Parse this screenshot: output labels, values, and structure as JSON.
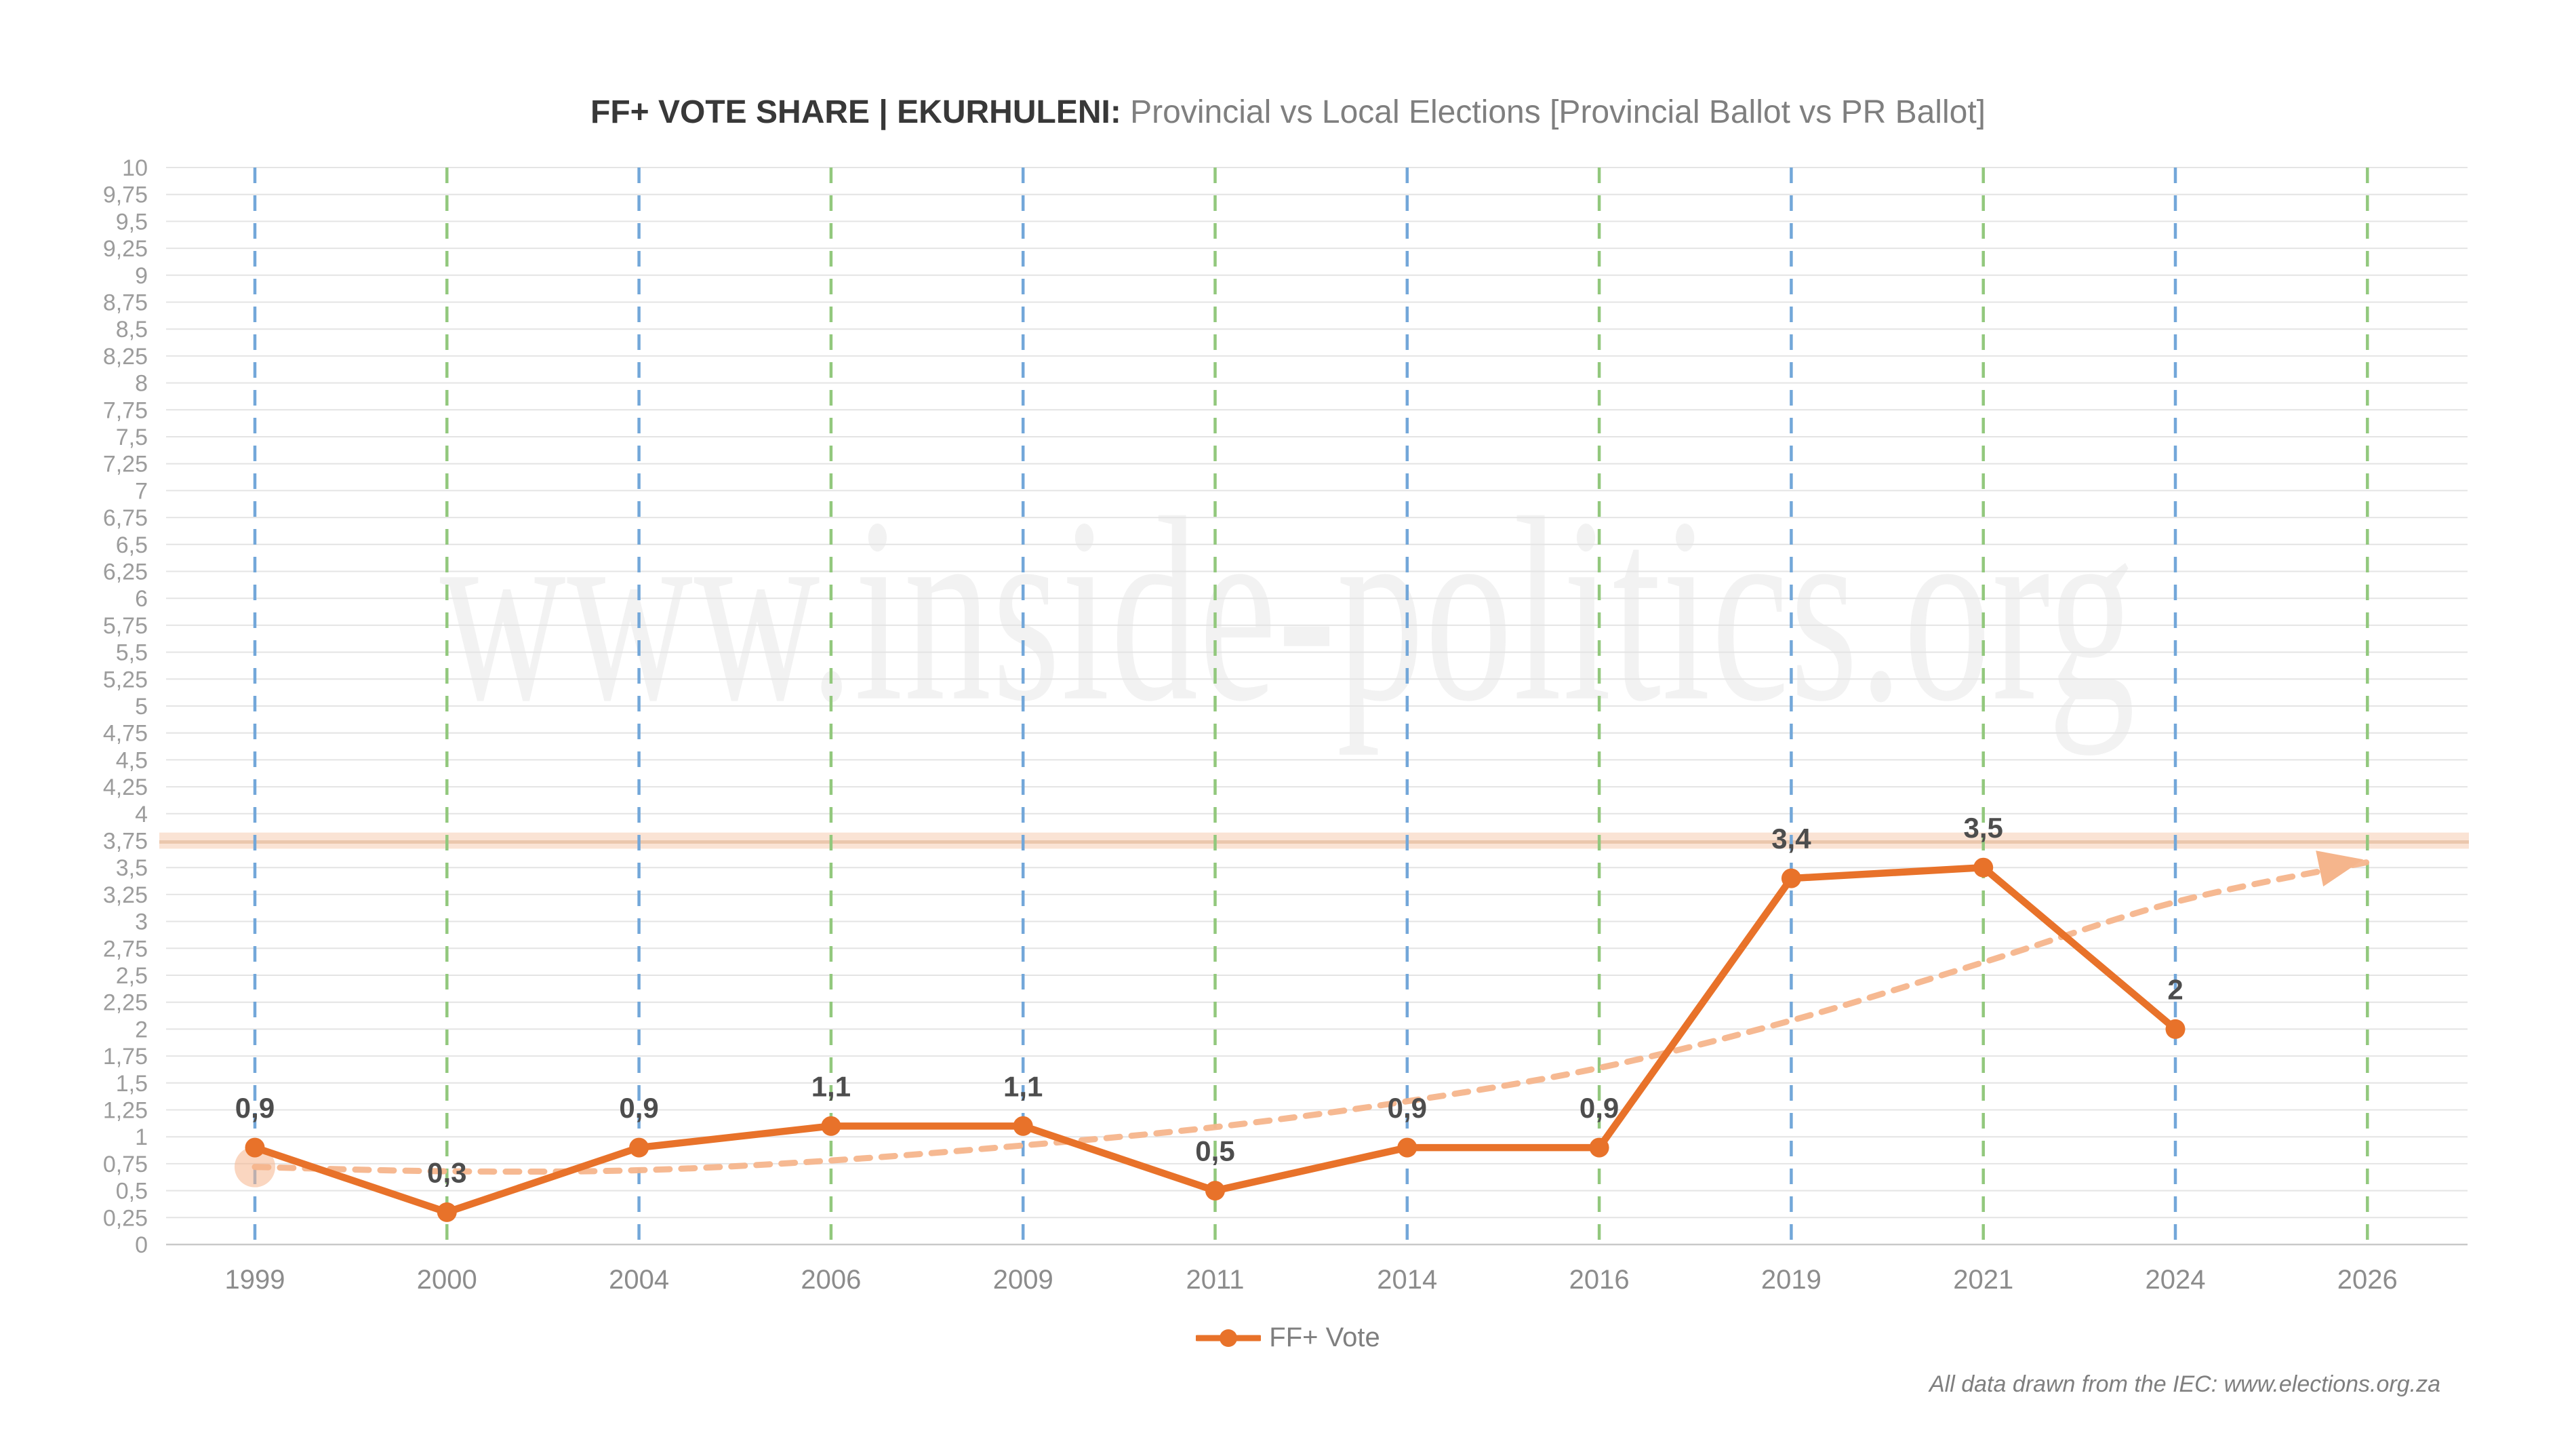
{
  "title": {
    "bold": "FF+ VOTE SHARE | EKURHULENI:",
    "regular": " Provincial vs Local Elections [Provincial Ballot vs PR Ballot]"
  },
  "watermark": "www.inside-politics.org",
  "footer_note": "All data drawn from the IEC: www.elections.org.za",
  "legend": {
    "items": [
      {
        "label": "FF+ Vote",
        "marker": "line-with-dot",
        "color": "#E8722A"
      }
    ],
    "position": "bottom-center"
  },
  "colors": {
    "series_line": "#E8722A",
    "trend_line": "#F5B58C",
    "trend_halo": "#F5B58C",
    "band_fill": "#FAE3D4",
    "band_core_line": "#EBC7AD",
    "provincial_vline": "#73A7D9",
    "local_vline": "#92C87D",
    "gridline": "#E4E4E4",
    "baseline_axis": "#C9C9C9",
    "ytick_label": "#9C9C9C",
    "year_label": "#8C8C8C",
    "data_label": "#4D4D4D",
    "title_bold": "#383838",
    "title_regular": "#7F7F7F",
    "legend_text": "#7F7F7F",
    "footer_text": "#7F7F7F",
    "watermark_text": "#F2F2F2"
  },
  "chart_data": {
    "type": "line",
    "title": "FF+ VOTE SHARE | EKURHULENI: Provincial vs Local Elections [Provincial Ballot vs PR Ballot]",
    "categories": [
      "1999",
      "2000",
      "2004",
      "2006",
      "2009",
      "2011",
      "2014",
      "2016",
      "2019",
      "2021",
      "2024",
      "2026"
    ],
    "category_election_type": [
      "provincial",
      "local",
      "provincial",
      "local",
      "provincial",
      "local",
      "provincial",
      "local",
      "provincial",
      "local",
      "provincial",
      "local"
    ],
    "series": [
      {
        "name": "FF+ Vote",
        "style": "solid-line-with-markers",
        "values": [
          0.9,
          0.3,
          0.9,
          1.1,
          1.1,
          0.5,
          0.9,
          0.9,
          3.4,
          3.5,
          2,
          null
        ],
        "data_labels": [
          "0,9",
          "0,3",
          "0,9",
          "1,1",
          "1,1",
          "0,5",
          "0,9",
          "0,9",
          "3,4",
          "3,5",
          "2",
          ""
        ]
      },
      {
        "name": "Trend (projection to 2026)",
        "style": "dashed-curve-with-arrow",
        "values": [
          0.72,
          0.68,
          0.69,
          0.78,
          0.92,
          1.09,
          1.33,
          1.64,
          2.08,
          2.62,
          3.18,
          3.55
        ],
        "start_halo_at_index": 0,
        "arrow_at_index": 11
      }
    ],
    "reference_band": {
      "value": 3.75,
      "thickness_units": 0.15
    },
    "ylim": [
      0,
      10
    ],
    "ytick_step": 0.25,
    "ytick_labels": [
      "0",
      "0,25",
      "0,5",
      "0,75",
      "1",
      "1,25",
      "1,5",
      "1,75",
      "2",
      "2,25",
      "2,5",
      "2,75",
      "3",
      "3,25",
      "3,5",
      "3,75",
      "4",
      "4,25",
      "4,5",
      "4,75",
      "5",
      "5,25",
      "5,5",
      "5,75",
      "6",
      "6,25",
      "6,5",
      "6,75",
      "7",
      "7,25",
      "7,5",
      "7,75",
      "8",
      "8,25",
      "8,5",
      "8,75",
      "9",
      "9,25",
      "9,5",
      "9,75",
      "10"
    ],
    "grid": true,
    "legend_position": "bottom"
  }
}
